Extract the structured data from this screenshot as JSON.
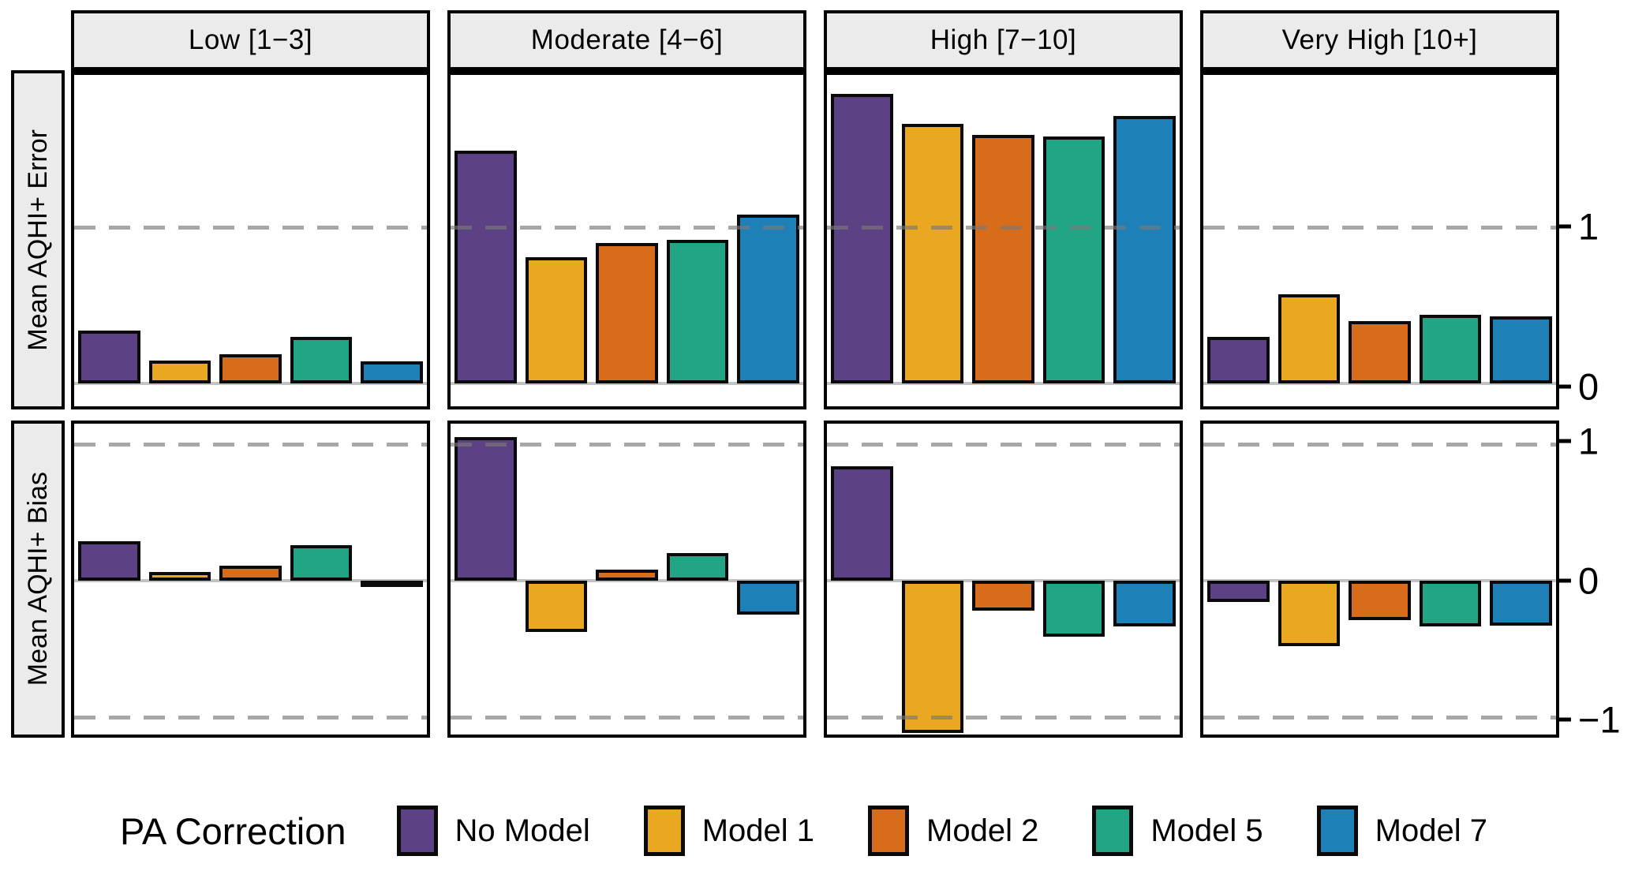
{
  "chart_data": {
    "type": "bar",
    "title": "",
    "legend_title": "PA Correction",
    "legend_position": "bottom",
    "grid": "dashed horizontal reference lines at ±1, solid light line at 0",
    "series": [
      {
        "name": "No Model",
        "color": "#5C4285"
      },
      {
        "name": "Model 1",
        "color": "#E9A820"
      },
      {
        "name": "Model 2",
        "color": "#D76D1B"
      },
      {
        "name": "Model 5",
        "color": "#21A585"
      },
      {
        "name": "Model 7",
        "color": "#1F80B8"
      }
    ],
    "facets": [
      "Low [1−3]",
      "Moderate [4−6]",
      "High [7−10]",
      "Very High [10+]"
    ],
    "rows": [
      {
        "label": "Mean AQHI+ Error",
        "ylim": [
          -0.145,
          1.973
        ],
        "ticks": [
          {
            "value": 1,
            "label": "1"
          },
          {
            "value": 0,
            "label": "0"
          }
        ],
        "dashed": [
          1
        ],
        "values": [
          [
            0.34,
            0.15,
            0.19,
            0.3,
            0.14
          ],
          [
            1.49,
            0.81,
            0.9,
            0.92,
            1.08
          ],
          [
            1.85,
            1.66,
            1.59,
            1.58,
            1.71
          ],
          [
            0.3,
            0.57,
            0.4,
            0.44,
            0.43
          ]
        ]
      },
      {
        "label": "Mean AQHI+ Bias",
        "ylim": [
          -1.13,
          1.15
        ],
        "ticks": [
          {
            "value": 1,
            "label": "1"
          },
          {
            "value": 0,
            "label": "0"
          },
          {
            "value": -1,
            "label": "−1"
          }
        ],
        "dashed": [
          1,
          -1
        ],
        "values": [
          [
            0.29,
            0.06,
            0.11,
            0.26,
            0.0
          ],
          [
            1.05,
            -0.38,
            0.08,
            0.2,
            -0.25
          ],
          [
            0.84,
            -1.12,
            -0.22,
            -0.41,
            -0.34
          ],
          [
            -0.16,
            -0.48,
            -0.29,
            -0.34,
            -0.33
          ]
        ]
      }
    ]
  }
}
